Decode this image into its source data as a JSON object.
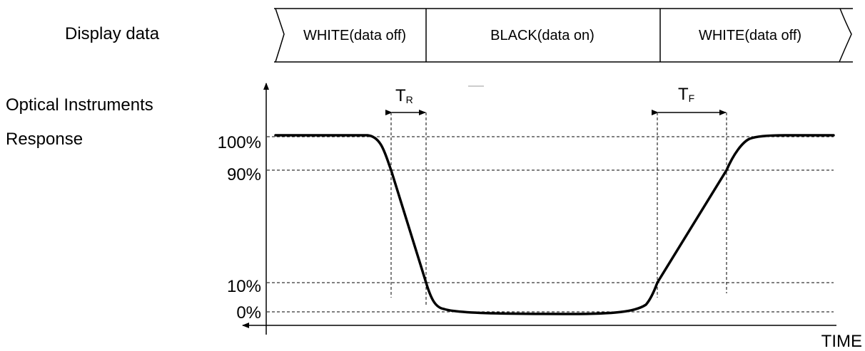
{
  "labels": {
    "display_data": "Display data",
    "optical_line1": "Optical Instruments",
    "optical_line2": "Response",
    "time_axis": "TIME"
  },
  "display_bar": {
    "segments": [
      "WHITE(data off)",
      "BLACK(data on)",
      "WHITE(data off)"
    ]
  },
  "y_levels": [
    "100%",
    "90%",
    "10%",
    "0%"
  ],
  "timing": {
    "rise": {
      "main": "T",
      "sub": "R"
    },
    "fall": {
      "main": "T",
      "sub": "F"
    }
  }
}
